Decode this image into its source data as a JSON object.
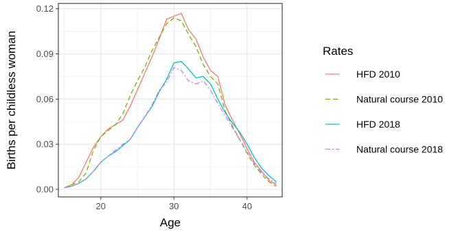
{
  "chart_data": {
    "type": "line",
    "xlabel": "Age",
    "ylabel": "Births per childless woman",
    "xlim": [
      14.2,
      44.8
    ],
    "ylim": [
      -0.005,
      0.1235
    ],
    "x_ticks": [
      20,
      30,
      40
    ],
    "y_ticks": [
      0.0,
      0.03,
      0.06,
      0.09,
      0.12
    ],
    "y_tick_labels": [
      "0.00",
      "0.03",
      "0.06",
      "0.09",
      "0.12"
    ],
    "grid": true,
    "legend": {
      "title": "Rates",
      "position": "right"
    },
    "x": [
      15,
      16,
      17,
      18,
      19,
      20,
      21,
      22,
      23,
      24,
      25,
      26,
      27,
      28,
      29,
      30,
      31,
      32,
      33,
      34,
      35,
      36,
      37,
      38,
      39,
      40,
      41,
      42,
      43,
      44
    ],
    "series": [
      {
        "name": "HFD 2010",
        "color": "#F8766D",
        "dash": "solid",
        "values": [
          0.001,
          0.003,
          0.008,
          0.018,
          0.028,
          0.035,
          0.04,
          0.043,
          0.046,
          0.055,
          0.066,
          0.077,
          0.088,
          0.1,
          0.113,
          0.115,
          0.117,
          0.106,
          0.1,
          0.088,
          0.079,
          0.075,
          0.056,
          0.046,
          0.037,
          0.027,
          0.018,
          0.012,
          0.006,
          0.003
        ]
      },
      {
        "name": "Natural course 2010",
        "color": "#7CAE00",
        "dash": "7,4",
        "values": [
          0.001,
          0.003,
          0.005,
          0.011,
          0.026,
          0.035,
          0.039,
          0.043,
          0.05,
          0.062,
          0.072,
          0.081,
          0.092,
          0.101,
          0.11,
          0.114,
          0.112,
          0.103,
          0.095,
          0.083,
          0.075,
          0.07,
          0.052,
          0.042,
          0.033,
          0.024,
          0.016,
          0.01,
          0.005,
          0.002
        ]
      },
      {
        "name": "HFD 2018",
        "color": "#00BFC4",
        "dash": "solid",
        "values": [
          0.001,
          0.002,
          0.004,
          0.007,
          0.012,
          0.018,
          0.022,
          0.025,
          0.029,
          0.033,
          0.041,
          0.048,
          0.055,
          0.065,
          0.073,
          0.084,
          0.085,
          0.08,
          0.074,
          0.075,
          0.07,
          0.06,
          0.051,
          0.044,
          0.038,
          0.03,
          0.021,
          0.014,
          0.009,
          0.005
        ]
      },
      {
        "name": "Natural course 2018",
        "color": "#C77CFF",
        "dash": "7,3,2,3",
        "values": [
          0.001,
          0.002,
          0.004,
          0.007,
          0.012,
          0.018,
          0.022,
          0.026,
          0.03,
          0.033,
          0.041,
          0.048,
          0.056,
          0.066,
          0.071,
          0.081,
          0.079,
          0.072,
          0.07,
          0.072,
          0.066,
          0.057,
          0.049,
          0.041,
          0.033,
          0.025,
          0.017,
          0.011,
          0.007,
          0.004
        ]
      }
    ]
  }
}
